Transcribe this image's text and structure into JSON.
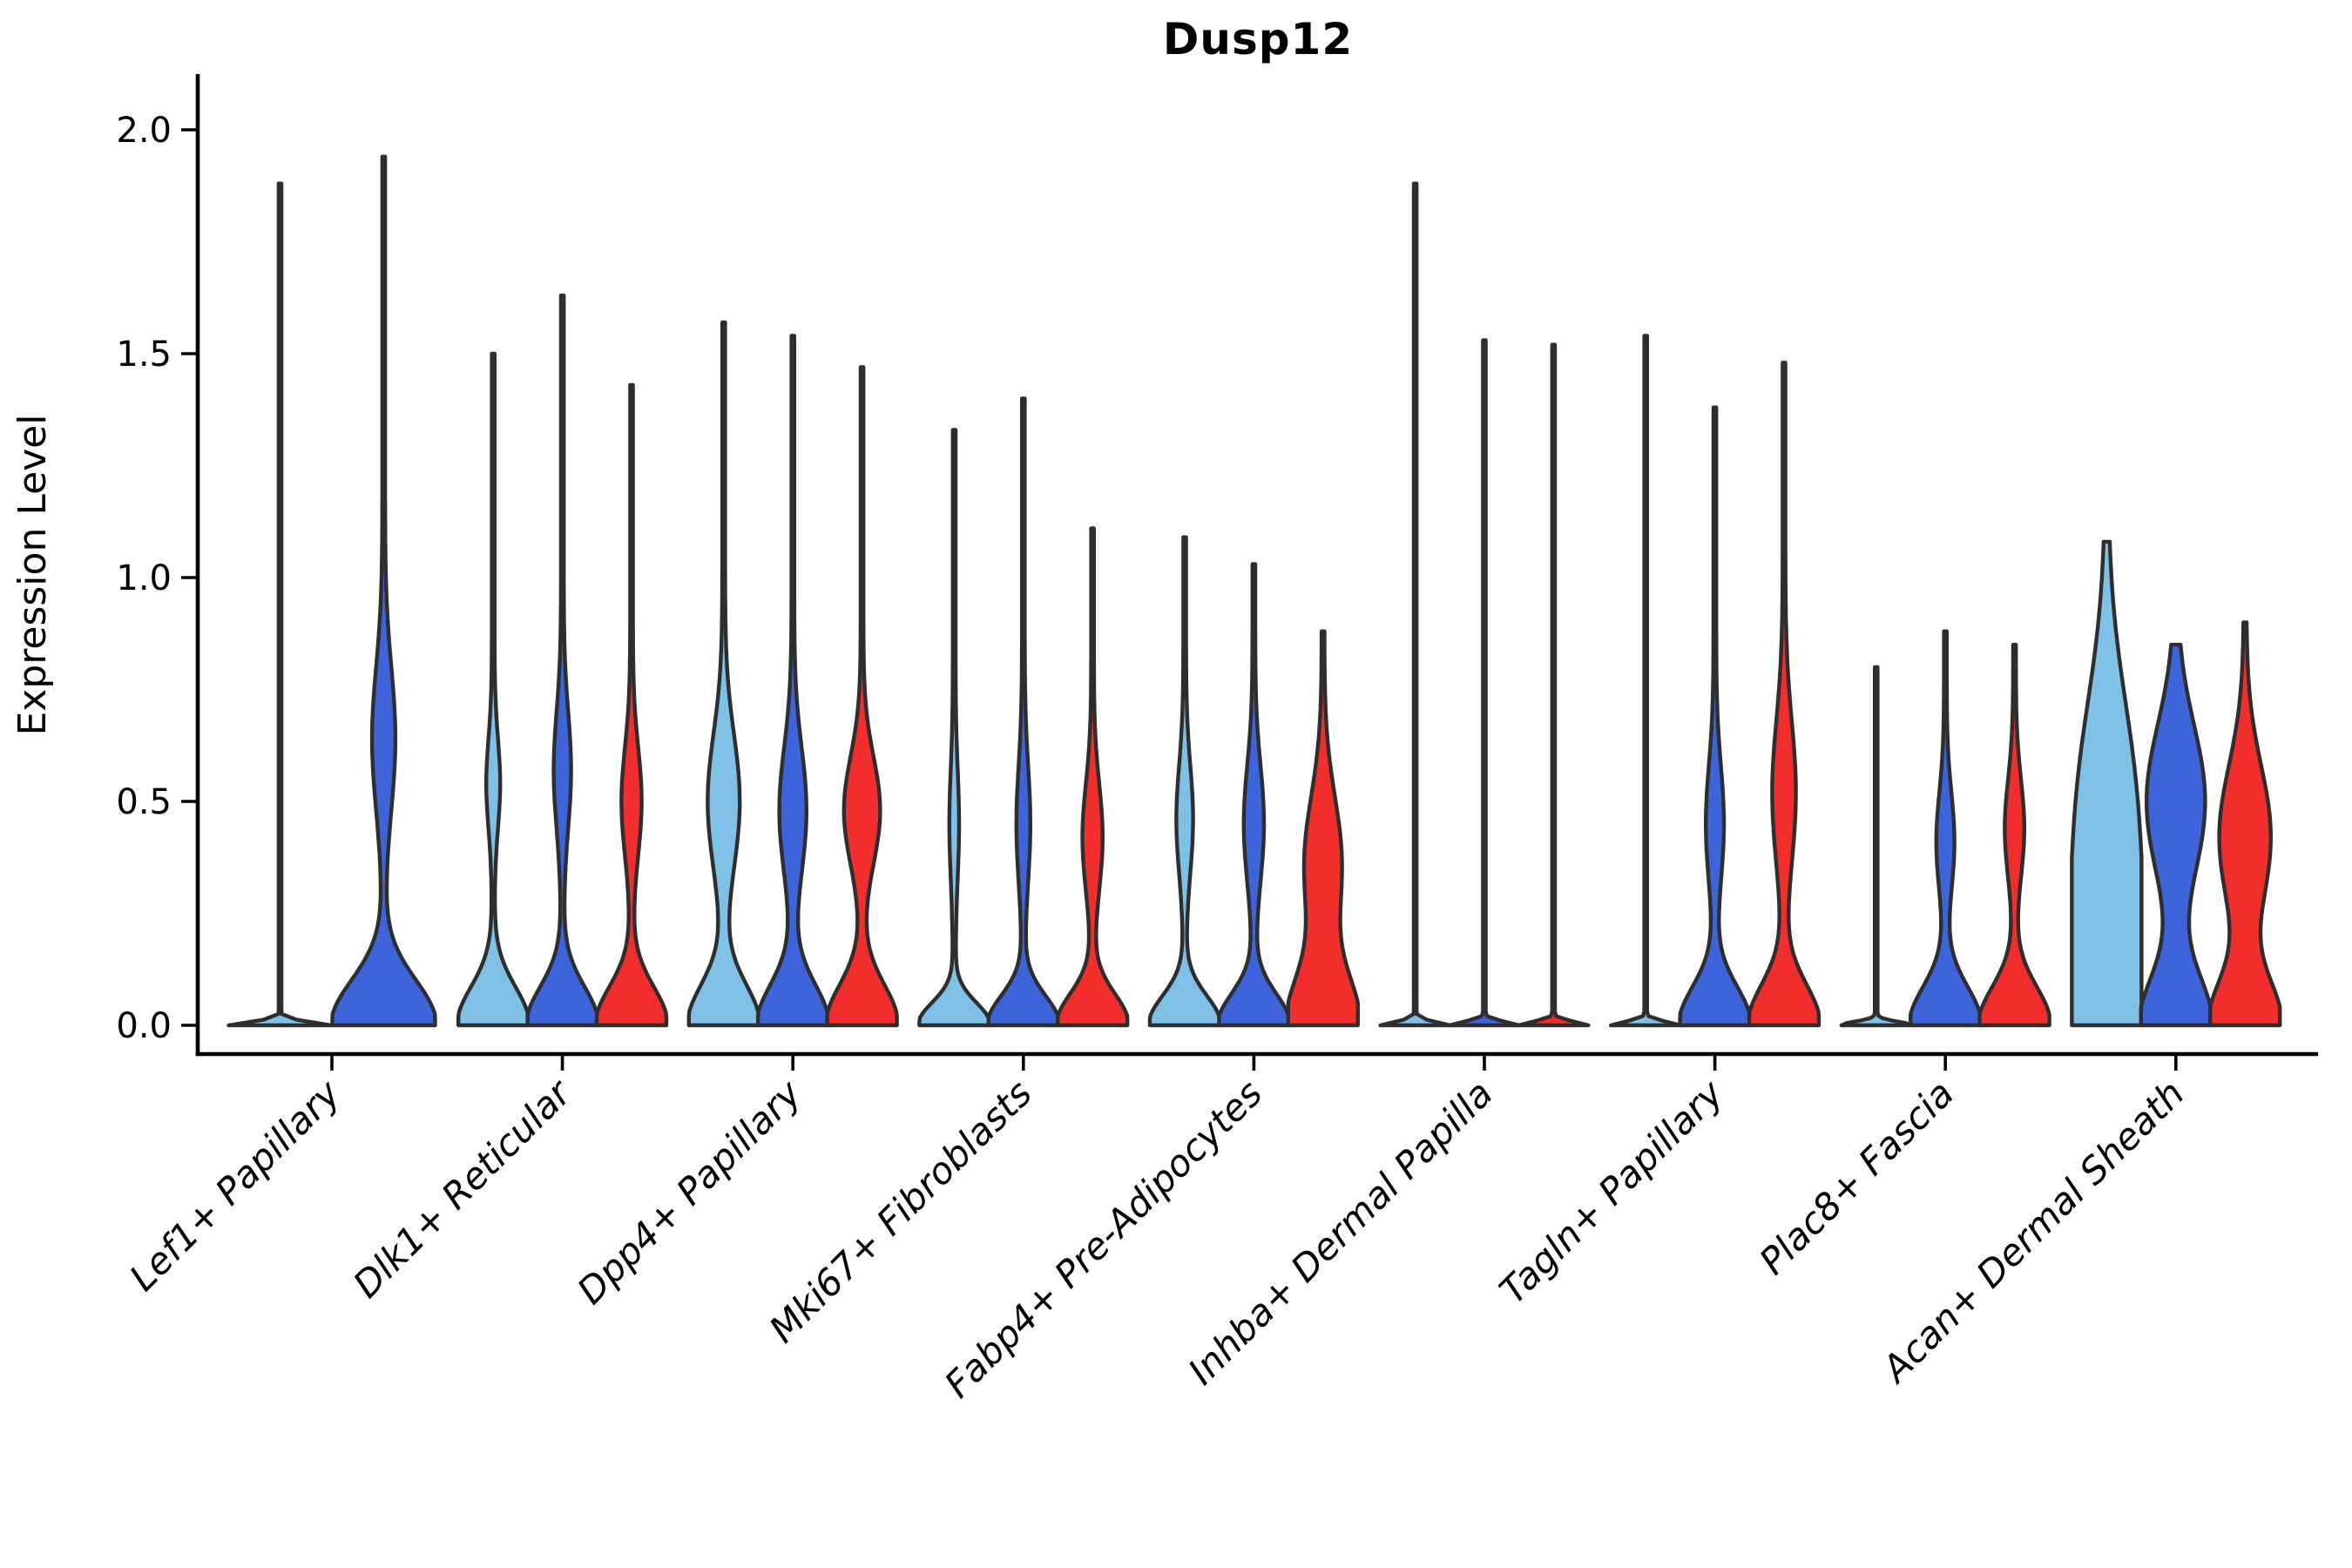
{
  "chart_data": {
    "type": "violin",
    "title": "Dusp12",
    "ylabel": "Expression Level",
    "xlabel": "",
    "ylim": [
      -0.064,
      2.12
    ],
    "grid": false,
    "legend_position": "none",
    "x_tick_rotation": 45,
    "yticks": [
      {
        "value": 0.0,
        "label": "0.0"
      },
      {
        "value": 0.5,
        "label": "0.5"
      },
      {
        "value": 1.0,
        "label": "1.0"
      },
      {
        "value": 1.5,
        "label": "1.5"
      },
      {
        "value": 2.0,
        "label": "2.0"
      }
    ],
    "palette": {
      "split1": "#7EC0E6",
      "split2": "#3E64DC",
      "split3": "#F22E2D",
      "outline": "#2E2E2E",
      "axis": "#000000"
    },
    "categories": [
      "Lef1+ Papillary",
      "Dlk1+ Reticular",
      "Dpp4+ Papillary",
      "Mki67+ Fibroblasts",
      "Fabp4+ Pre-Adipocytes",
      "Inhba+ Dermal Papilla",
      "Tagln+ Papillary",
      "Plac8+ Fascia",
      "Acan+ Dermal Sheath"
    ],
    "violins": [
      {
        "category": "Lef1+ Papillary",
        "items": [
          {
            "split": "split1",
            "max": 1.88,
            "flat": true
          },
          {
            "split": "split2",
            "max": 1.94,
            "mid_center": 0.64,
            "mid_sigma": 0.16,
            "mid_amp": 0.2,
            "base_height": 0.2
          }
        ]
      },
      {
        "category": "Dlk1+ Reticular",
        "items": [
          {
            "split": "split1",
            "max": 1.5,
            "mid_center": 0.54,
            "mid_sigma": 0.1,
            "mid_amp": 0.16,
            "base_height": 0.17
          },
          {
            "split": "split2",
            "max": 1.63,
            "mid_center": 0.57,
            "mid_sigma": 0.13,
            "mid_amp": 0.21,
            "base_height": 0.17
          },
          {
            "split": "split3",
            "max": 1.43,
            "mid_center": 0.5,
            "mid_sigma": 0.12,
            "mid_amp": 0.25,
            "base_height": 0.17
          }
        ]
      },
      {
        "category": "Dpp4+ Papillary",
        "items": [
          {
            "split": "split1",
            "max": 1.57,
            "mid_center": 0.5,
            "mid_sigma": 0.15,
            "mid_amp": 0.42,
            "base_height": 0.18
          },
          {
            "split": "split2",
            "max": 1.54,
            "mid_center": 0.48,
            "mid_sigma": 0.14,
            "mid_amp": 0.35,
            "base_height": 0.18
          },
          {
            "split": "split3",
            "max": 1.47,
            "mid_center": 0.48,
            "mid_sigma": 0.12,
            "mid_amp": 0.48,
            "base_height": 0.18
          }
        ]
      },
      {
        "category": "Mki67+ Fibroblasts",
        "items": [
          {
            "split": "split1",
            "max": 1.33,
            "mid_center": 0.45,
            "mid_sigma": 0.12,
            "mid_amp": 0.1,
            "base_height": 0.1
          },
          {
            "split": "split2",
            "max": 1.4,
            "mid_center": 0.45,
            "mid_sigma": 0.13,
            "mid_amp": 0.16,
            "base_height": 0.13
          },
          {
            "split": "split3",
            "max": 1.11,
            "mid_center": 0.42,
            "mid_sigma": 0.12,
            "mid_amp": 0.25,
            "base_height": 0.14
          }
        ]
      },
      {
        "category": "Fabp4+ Pre-Adipocytes",
        "items": [
          {
            "split": "split1",
            "max": 1.09,
            "mid_center": 0.46,
            "mid_sigma": 0.12,
            "mid_amp": 0.2,
            "base_height": 0.13
          },
          {
            "split": "split2",
            "max": 1.03,
            "mid_center": 0.45,
            "mid_sigma": 0.13,
            "mid_amp": 0.25,
            "base_height": 0.14
          },
          {
            "split": "split3",
            "max": 0.88,
            "mid_center": 0.36,
            "mid_sigma": 0.15,
            "mid_amp": 0.5,
            "base_height": 0.22
          }
        ]
      },
      {
        "category": "Inhba+ Dermal Papilla",
        "items": [
          {
            "split": "split1",
            "max": 1.88,
            "flat": true
          },
          {
            "split": "split2",
            "max": 1.53,
            "flat": true
          },
          {
            "split": "split3",
            "max": 1.52,
            "flat": true
          }
        ]
      },
      {
        "category": "Tagln+ Papillary",
        "items": [
          {
            "split": "split1",
            "max": 1.54,
            "flat": true
          },
          {
            "split": "split2",
            "max": 1.38,
            "mid_center": 0.45,
            "mid_sigma": 0.13,
            "mid_amp": 0.22,
            "base_height": 0.17
          },
          {
            "split": "split3",
            "max": 1.48,
            "mid_center": 0.52,
            "mid_sigma": 0.16,
            "mid_amp": 0.3,
            "base_height": 0.18
          }
        ]
      },
      {
        "category": "Plac8+ Fascia",
        "items": [
          {
            "split": "split1",
            "max": 0.8,
            "flat": true
          },
          {
            "split": "split2",
            "max": 0.88,
            "mid_center": 0.41,
            "mid_sigma": 0.11,
            "mid_amp": 0.22,
            "base_height": 0.17
          },
          {
            "split": "split3",
            "max": 0.85,
            "mid_center": 0.44,
            "mid_sigma": 0.11,
            "mid_amp": 0.24,
            "base_height": 0.17
          }
        ]
      },
      {
        "category": "Acan+ Dermal Sheath",
        "items": [
          {
            "split": "split1",
            "max": 1.08,
            "mid_center": 0.5,
            "mid_sigma": 0.25,
            "mid_amp": 0.72,
            "base_height": 0.5
          },
          {
            "split": "split2",
            "max": 0.85,
            "mid_center": 0.5,
            "mid_sigma": 0.17,
            "mid_amp": 0.8,
            "base_height": 0.22
          },
          {
            "split": "split3",
            "max": 0.9,
            "mid_center": 0.42,
            "mid_sigma": 0.16,
            "mid_amp": 0.7,
            "base_height": 0.2
          }
        ]
      }
    ]
  }
}
